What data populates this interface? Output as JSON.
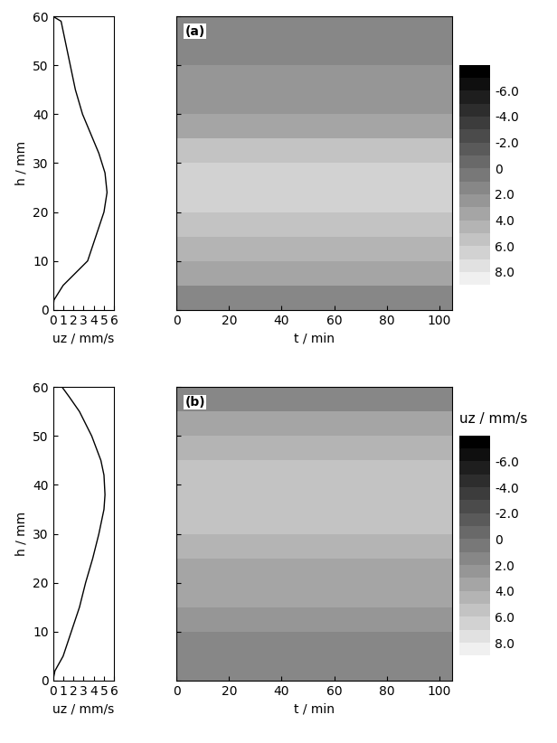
{
  "chart_data": [
    {
      "type": "line",
      "xlabel": "uz / mm/s",
      "ylabel": "h / mm",
      "color": "#000000",
      "x": [
        0,
        0.1,
        1.0,
        3.4,
        4.2,
        5.0,
        5.3,
        5.1,
        4.5,
        3.7,
        2.9,
        2.2,
        1.7,
        1.2,
        0.8,
        0
      ],
      "y": [
        0,
        2,
        5,
        10,
        15,
        20,
        24,
        28,
        32,
        36,
        40,
        45,
        50,
        55,
        59,
        60
      ],
      "xlim": [
        0,
        6
      ],
      "xticks": [
        0,
        1,
        2,
        3,
        4,
        5,
        6
      ],
      "ylim": [
        0,
        60
      ],
      "yticks": [
        0,
        10,
        20,
        30,
        40,
        50,
        60
      ]
    },
    {
      "type": "heatmap",
      "label": "(a)",
      "xlabel": "t / min",
      "tick_labels": "x",
      "t_edges": [
        0,
        15,
        30,
        45,
        60,
        75,
        90,
        105
      ],
      "h_edges": [
        0,
        5,
        10,
        15,
        20,
        25,
        30,
        35,
        40,
        45,
        50,
        55,
        60
      ],
      "cells": [
        [
          1.5,
          1.5,
          1.5,
          1.5,
          1.5,
          1.5,
          1.5
        ],
        [
          3.0,
          3.0,
          3.0,
          3.0,
          3.0,
          3.0,
          3.0
        ],
        [
          4.5,
          4.5,
          4.5,
          4.5,
          4.5,
          4.5,
          4.5
        ],
        [
          5.5,
          5.5,
          5.5,
          5.5,
          5.5,
          5.5,
          5.5
        ],
        [
          6.0,
          6.0,
          6.0,
          6.0,
          6.0,
          6.0,
          6.0
        ],
        [
          6.0,
          6.0,
          6.0,
          6.0,
          6.0,
          6.0,
          6.0
        ],
        [
          5.0,
          5.0,
          5.0,
          5.0,
          5.0,
          5.0,
          5.0
        ],
        [
          3.5,
          3.5,
          3.5,
          3.5,
          3.5,
          3.5,
          3.5
        ],
        [
          2.5,
          2.5,
          2.5,
          2.5,
          2.5,
          2.5,
          2.5
        ],
        [
          2.0,
          2.0,
          2.0,
          2.0,
          2.0,
          2.0,
          2.0
        ],
        [
          1.5,
          1.5,
          1.5,
          1.5,
          1.5,
          1.5,
          1.5
        ],
        [
          1.0,
          1.0,
          1.0,
          1.0,
          1.0,
          1.0,
          1.0
        ]
      ],
      "xlim": [
        0,
        105
      ],
      "xticks": [
        0,
        20,
        40,
        60,
        80,
        100
      ],
      "ylim": [
        0,
        60
      ],
      "yticks": [
        0,
        10,
        20,
        30,
        40,
        50,
        60
      ],
      "colorbar_range": [
        -8,
        10
      ],
      "colorbar_ticks": [
        {
          "value": -6,
          "label": "-6.0"
        },
        {
          "value": -4,
          "label": "-4.0"
        },
        {
          "value": -2,
          "label": "-2.0"
        },
        0,
        {
          "value": 2,
          "label": "2.0"
        },
        {
          "value": 4,
          "label": "4.0"
        },
        {
          "value": 6,
          "label": "6.0"
        },
        {
          "value": 8,
          "label": "8.0"
        }
      ]
    },
    {
      "type": "line",
      "xlabel": "uz / mm/s",
      "ylabel": "h / mm",
      "color": "#000000",
      "x": [
        0,
        0.2,
        1.0,
        1.8,
        2.6,
        3.2,
        3.9,
        4.5,
        5.0,
        5.1,
        5.0,
        4.7,
        3.8,
        2.6,
        1.6,
        0.9
      ],
      "y": [
        0,
        2,
        5,
        10,
        15,
        20,
        25,
        30,
        35,
        38,
        42,
        45,
        50,
        55,
        58,
        60
      ],
      "xlim": [
        0,
        6
      ],
      "xticks": [
        0,
        1,
        2,
        3,
        4,
        5,
        6
      ],
      "ylim": [
        0,
        60
      ],
      "yticks": [
        0,
        10,
        20,
        30,
        40,
        50,
        60
      ]
    },
    {
      "type": "heatmap",
      "label": "(b)",
      "xlabel": "t / min",
      "tick_labels": "x",
      "colorbar_label": "uz / mm/s",
      "t_edges": [
        0,
        15,
        30,
        45,
        60,
        75,
        90,
        105
      ],
      "h_edges": [
        0,
        5,
        10,
        15,
        20,
        25,
        30,
        35,
        40,
        45,
        50,
        55,
        60
      ],
      "cells": [
        [
          1.5,
          1.5,
          1.5,
          1.5,
          1.5,
          1.5,
          1.5
        ],
        [
          1.5,
          1.5,
          1.5,
          1.5,
          1.5,
          1.5,
          1.5
        ],
        [
          2.5,
          2.5,
          2.5,
          2.5,
          2.5,
          2.5,
          2.5
        ],
        [
          3.0,
          3.0,
          3.0,
          3.0,
          3.0,
          3.0,
          3.0
        ],
        [
          3.5,
          3.5,
          3.5,
          3.5,
          3.5,
          3.5,
          3.5
        ],
        [
          4.0,
          4.0,
          4.0,
          4.0,
          4.0,
          4.0,
          4.0
        ],
        [
          5.0,
          5.0,
          5.0,
          5.0,
          5.0,
          5.0,
          5.0
        ],
        [
          5.5,
          5.5,
          5.5,
          5.5,
          5.5,
          5.5,
          5.5
        ],
        [
          5.0,
          5.0,
          5.0,
          5.0,
          5.0,
          5.0,
          5.0
        ],
        [
          4.5,
          4.5,
          4.5,
          4.5,
          4.5,
          4.5,
          4.5
        ],
        [
          3.0,
          3.0,
          3.0,
          3.0,
          3.0,
          3.0,
          3.0
        ],
        [
          1.5,
          1.5,
          1.5,
          1.5,
          1.5,
          1.5,
          1.5
        ]
      ],
      "xlim": [
        0,
        105
      ],
      "xticks": [
        0,
        20,
        40,
        60,
        80,
        100
      ],
      "ylim": [
        0,
        60
      ],
      "yticks": [
        0,
        10,
        20,
        30,
        40,
        50,
        60
      ],
      "colorbar_range": [
        -8,
        10
      ],
      "colorbar_ticks": [
        {
          "value": -6,
          "label": "-6.0"
        },
        {
          "value": -4,
          "label": "-4.0"
        },
        {
          "value": -2,
          "label": "-2.0"
        },
        0,
        {
          "value": 2,
          "label": "2.0"
        },
        {
          "value": 4,
          "label": "4.0"
        },
        {
          "value": 6,
          "label": "6.0"
        },
        {
          "value": 8,
          "label": "8.0"
        }
      ]
    }
  ]
}
